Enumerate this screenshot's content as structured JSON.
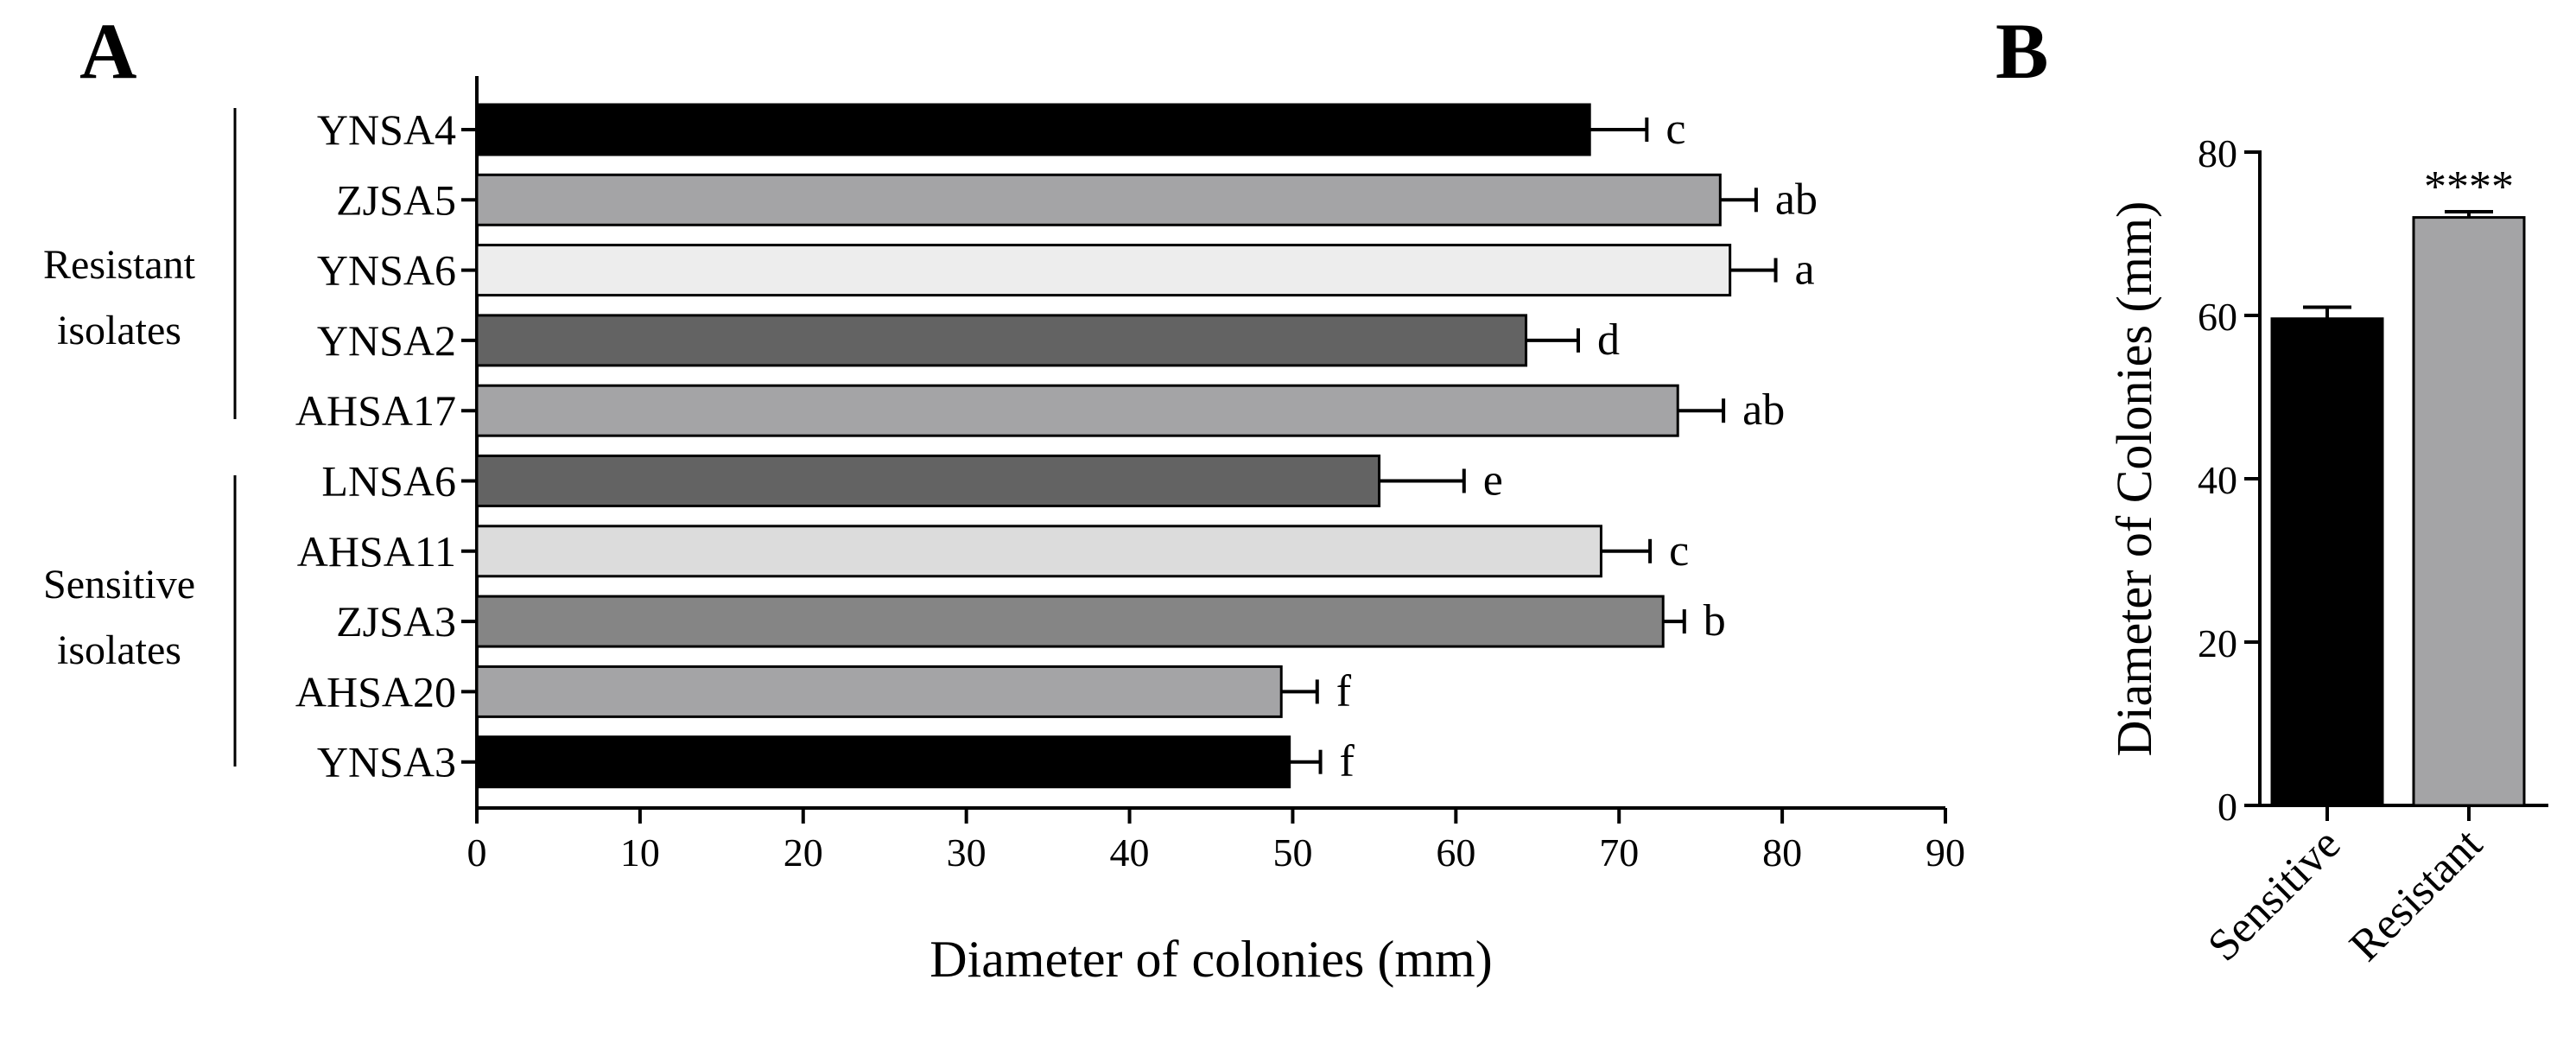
{
  "panels": {
    "a_label": "A",
    "b_label": "B"
  },
  "groups": [
    {
      "line1": "Resistant",
      "line2": "isolates"
    },
    {
      "line1": "Sensitive",
      "line2": "isolates"
    }
  ],
  "chart_data": [
    {
      "type": "bar",
      "orientation": "horizontal",
      "panel": "A",
      "categories": [
        "YNSA4",
        "ZJSA5",
        "YNSA6",
        "YNSA2",
        "AHSA17",
        "LNSA6",
        "AHSA11",
        "ZJSA3",
        "AHSA20",
        "YNSA3"
      ],
      "values": [
        68.2,
        76.2,
        76.8,
        64.3,
        73.6,
        55.3,
        68.9,
        72.7,
        49.3,
        49.8
      ],
      "errors": [
        3.5,
        2.2,
        2.8,
        3.2,
        2.8,
        5.2,
        3.0,
        1.3,
        2.2,
        1.9
      ],
      "letters": [
        "c",
        "ab",
        "a",
        "d",
        "ab",
        "e",
        "c",
        "b",
        "f",
        "f"
      ],
      "colors": [
        "#000000",
        "#a4a4a6",
        "#ededed",
        "#636363",
        "#a4a4a6",
        "#636363",
        "#dcdcdc",
        "#858585",
        "#a4a4a6",
        "#000000"
      ],
      "xlabel": "Diameter of colonies (mm)",
      "xlim": [
        0,
        90
      ],
      "xticks": [
        0,
        10,
        20,
        30,
        40,
        50,
        60,
        70,
        80,
        90
      ]
    },
    {
      "type": "bar",
      "panel": "B",
      "categories": [
        "Sensitive",
        "Resistant"
      ],
      "values": [
        59.6,
        72.0
      ],
      "errors": [
        1.4,
        0.7
      ],
      "significance": [
        "",
        "****"
      ],
      "colors": [
        "#000000",
        "#a4a4a6"
      ],
      "ylabel": "Diameter of Colonies (mm)",
      "ylim": [
        0,
        80
      ],
      "yticks": [
        0,
        20,
        40,
        60,
        80
      ]
    }
  ]
}
